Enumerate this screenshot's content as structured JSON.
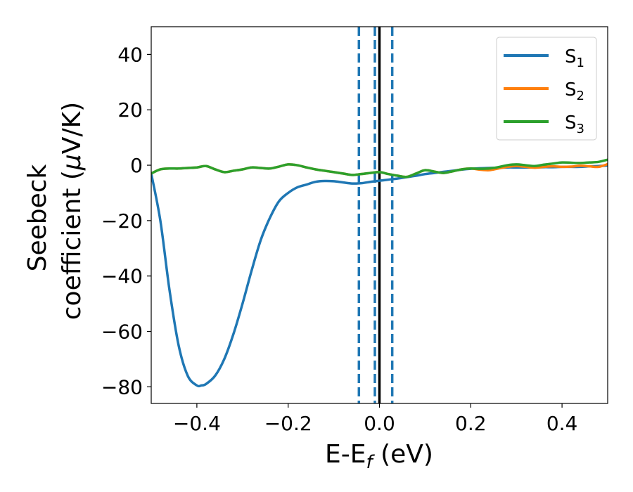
{
  "chart_data": {
    "type": "line",
    "xlabel": "E-E",
    "xlabel_sub": "f",
    "xlabel_unit": " (eV)",
    "ylabel_line1": "Seebeck",
    "ylabel_line2": "coefficient  (",
    "ylabel_mu": "μ",
    "ylabel_unit_rest": "V/K)",
    "xlim": [
      -0.5,
      0.5
    ],
    "ylim": [
      -86,
      50
    ],
    "x_ticks": [
      -0.4,
      -0.2,
      0.0,
      0.2,
      0.4
    ],
    "x_tick_labels": [
      "−0.4",
      "−0.2",
      "0.0",
      "0.2",
      "0.4"
    ],
    "y_ticks": [
      40,
      20,
      0,
      -20,
      -40,
      -60,
      -80
    ],
    "y_tick_labels": [
      "40",
      "20",
      "0",
      "−20",
      "−40",
      "−60",
      "−80"
    ],
    "grid": false,
    "legend_position": "top-right",
    "vertical_lines": [
      {
        "x": -0.045,
        "style": "dashed",
        "color": "#1f77b4"
      },
      {
        "x": -0.01,
        "style": "dashed",
        "color": "#1f77b4"
      },
      {
        "x": 0.028,
        "style": "dashed",
        "color": "#1f77b4"
      },
      {
        "x": 0.0,
        "style": "solid",
        "color": "#000000"
      }
    ],
    "series": [
      {
        "name": "S",
        "sub": "1",
        "color": "#1f77b4",
        "x": [
          -0.5,
          -0.48,
          -0.46,
          -0.44,
          -0.42,
          -0.4,
          -0.39,
          -0.38,
          -0.36,
          -0.34,
          -0.32,
          -0.3,
          -0.28,
          -0.26,
          -0.24,
          -0.22,
          -0.2,
          -0.18,
          -0.16,
          -0.14,
          -0.12,
          -0.1,
          -0.08,
          -0.06,
          -0.04,
          -0.02,
          0.0,
          0.02,
          0.04,
          0.06,
          0.08,
          0.1,
          0.12,
          0.14,
          0.16,
          0.18,
          0.2,
          0.22,
          0.24,
          0.26,
          0.28,
          0.3,
          0.32,
          0.34,
          0.36,
          0.38,
          0.4,
          0.42,
          0.44,
          0.46,
          0.48,
          0.5
        ],
        "y": [
          -3,
          -20,
          -45,
          -65,
          -76,
          -79.5,
          -79.5,
          -79,
          -76,
          -70,
          -61,
          -50,
          -38,
          -27,
          -19,
          -13,
          -10,
          -8,
          -7,
          -6,
          -5.7,
          -5.8,
          -6.2,
          -6.6,
          -6.5,
          -6,
          -5.6,
          -5.2,
          -4.8,
          -4.3,
          -3.8,
          -3.2,
          -2.8,
          -2.4,
          -2.0,
          -1.6,
          -1.3,
          -1.1,
          -1.0,
          -0.9,
          -0.8,
          -0.8,
          -0.8,
          -0.8,
          -0.7,
          -0.7,
          -0.6,
          -0.6,
          -0.6,
          -0.4,
          -0.3,
          -0.1
        ]
      },
      {
        "name": "S",
        "sub": "2",
        "color": "#ff7f0e",
        "x": [
          -0.5,
          -0.48,
          -0.46,
          -0.44,
          -0.42,
          -0.4,
          -0.38,
          -0.36,
          -0.34,
          -0.32,
          -0.3,
          -0.28,
          -0.26,
          -0.24,
          -0.22,
          -0.2,
          -0.18,
          -0.16,
          -0.14,
          -0.12,
          -0.1,
          -0.08,
          -0.06,
          -0.04,
          -0.02,
          0.0,
          0.02,
          0.04,
          0.06,
          0.08,
          0.1,
          0.12,
          0.14,
          0.16,
          0.18,
          0.2,
          0.22,
          0.24,
          0.26,
          0.28,
          0.3,
          0.32,
          0.34,
          0.36,
          0.38,
          0.4,
          0.42,
          0.44,
          0.46,
          0.48,
          0.5
        ],
        "y": [
          -3,
          -1.5,
          -1.2,
          -1.2,
          -1.0,
          -0.8,
          -0.3,
          -1.5,
          -2.5,
          -2.0,
          -1.5,
          -0.8,
          -1.0,
          -1.2,
          -0.5,
          0.3,
          0.0,
          -0.8,
          -1.5,
          -2.0,
          -2.5,
          -3.0,
          -3.5,
          -3.2,
          -2.8,
          -2.5,
          -3.2,
          -3.8,
          -4.2,
          -3.0,
          -1.8,
          -2.3,
          -2.8,
          -2.2,
          -1.5,
          -1.2,
          -1.6,
          -1.8,
          -1.2,
          -0.6,
          -0.3,
          -0.6,
          -0.9,
          -0.6,
          -0.4,
          -0.6,
          -0.5,
          -0.2,
          -0.4,
          -0.6,
          0.4
        ]
      },
      {
        "name": "S",
        "sub": "3",
        "color": "#2ca02c",
        "x": [
          -0.5,
          -0.48,
          -0.46,
          -0.44,
          -0.42,
          -0.4,
          -0.38,
          -0.36,
          -0.34,
          -0.32,
          -0.3,
          -0.28,
          -0.26,
          -0.24,
          -0.22,
          -0.2,
          -0.18,
          -0.16,
          -0.14,
          -0.12,
          -0.1,
          -0.08,
          -0.06,
          -0.04,
          -0.02,
          0.0,
          0.02,
          0.04,
          0.06,
          0.08,
          0.1,
          0.12,
          0.14,
          0.16,
          0.18,
          0.2,
          0.22,
          0.24,
          0.26,
          0.28,
          0.3,
          0.32,
          0.34,
          0.36,
          0.38,
          0.4,
          0.42,
          0.44,
          0.46,
          0.48,
          0.5
        ],
        "y": [
          -3,
          -1.5,
          -1.2,
          -1.2,
          -1.0,
          -0.8,
          -0.3,
          -1.5,
          -2.5,
          -2.0,
          -1.5,
          -0.8,
          -1.0,
          -1.2,
          -0.5,
          0.3,
          0.0,
          -0.8,
          -1.5,
          -2.0,
          -2.5,
          -3.0,
          -3.5,
          -3.2,
          -2.8,
          -2.5,
          -3.2,
          -3.8,
          -4.2,
          -3.0,
          -1.8,
          -2.3,
          -2.8,
          -2.2,
          -1.5,
          -1.2,
          -1.3,
          -1.2,
          -0.7,
          0.0,
          0.3,
          0.0,
          -0.3,
          0.2,
          0.6,
          1.0,
          0.9,
          0.8,
          1.0,
          1.2,
          2.0
        ]
      }
    ]
  }
}
